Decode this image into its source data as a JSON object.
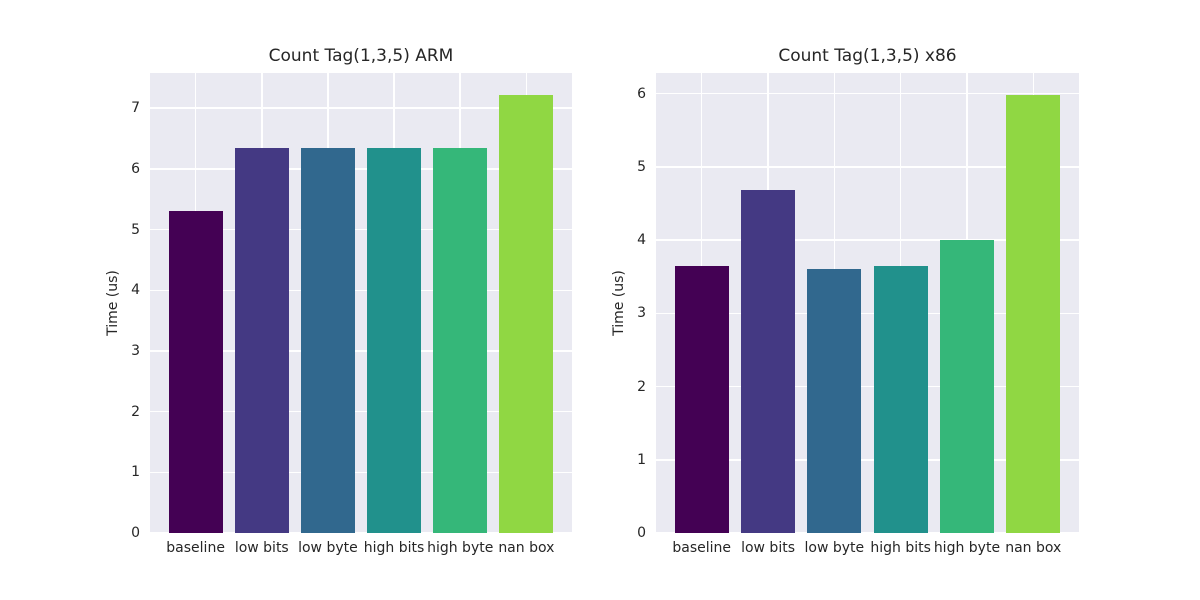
{
  "style": {
    "figure_bg": "#ffffff",
    "axes_bg": "#eaeaf2",
    "grid_color": "#ffffff",
    "text_color": "#262626"
  },
  "chart_data": [
    {
      "type": "bar",
      "title": "Count Tag(1,3,5) ARM",
      "xlabel": "",
      "ylabel": "Time (us)",
      "categories": [
        "baseline",
        "low bits",
        "low byte",
        "high bits",
        "high byte",
        "nan box"
      ],
      "values": [
        5.3,
        6.34,
        6.34,
        6.34,
        6.34,
        7.22
      ],
      "yticks": [
        0,
        1,
        2,
        3,
        4,
        5,
        6,
        7
      ],
      "ylim": [
        0,
        7.58
      ],
      "grid": true,
      "legend": false,
      "bar_colors": [
        "#440154",
        "#443983",
        "#31688e",
        "#21918c",
        "#35b779",
        "#90d743"
      ]
    },
    {
      "type": "bar",
      "title": "Count Tag(1,3,5) x86",
      "xlabel": "",
      "ylabel": "Time (us)",
      "categories": [
        "baseline",
        "low bits",
        "low byte",
        "high bits",
        "high byte",
        "nan box"
      ],
      "values": [
        3.65,
        4.68,
        3.61,
        3.64,
        4.0,
        5.98
      ],
      "yticks": [
        0,
        1,
        2,
        3,
        4,
        5,
        6
      ],
      "ylim": [
        0,
        6.28
      ],
      "grid": true,
      "legend": false,
      "bar_colors": [
        "#440154",
        "#443983",
        "#31688e",
        "#21918c",
        "#35b779",
        "#90d743"
      ]
    }
  ]
}
